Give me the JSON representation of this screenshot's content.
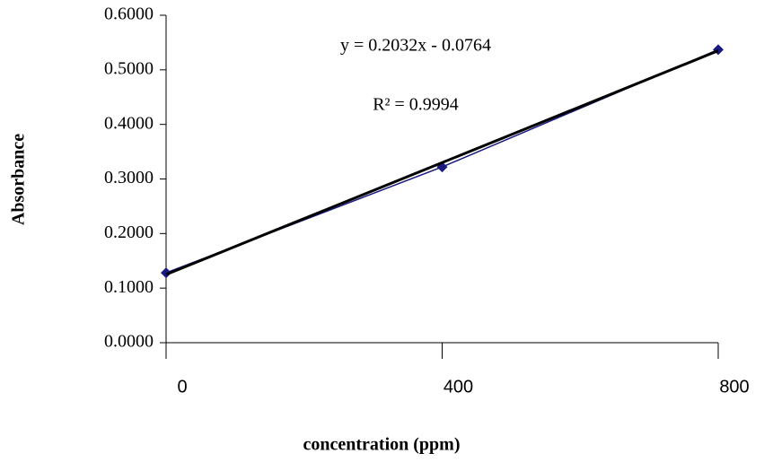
{
  "chart_data": {
    "type": "scatter",
    "x_label": "concentration (ppm)",
    "y_label": "Absorbance",
    "annotations": [
      "y = 0.2032x - 0.0764",
      "R² = 0.9994"
    ],
    "x": [
      0,
      400,
      800
    ],
    "series": [
      {
        "color": "#1a1a80",
        "values": [
          0.128,
          0.322,
          0.537
        ],
        "marker": "diamond"
      },
      {
        "color": "#000000",
        "values": [
          0.125,
          0.33,
          0.535
        ],
        "marker": "none"
      }
    ],
    "xlim": [
      0,
      800
    ],
    "xticks": [
      0,
      400,
      800
    ],
    "ylim": [
      0,
      0.6
    ],
    "yticks": [
      {
        "value": 0,
        "label": "0.0000"
      },
      {
        "value": 0.1,
        "label": "0.1000"
      },
      {
        "value": 0.2,
        "label": "0.2000"
      },
      {
        "value": 0.3,
        "label": "0.3000"
      },
      {
        "value": 0.4,
        "label": "0.4000"
      },
      {
        "value": 0.5,
        "label": "0.5000"
      },
      {
        "value": 0.6,
        "label": "0.6000"
      }
    ]
  }
}
